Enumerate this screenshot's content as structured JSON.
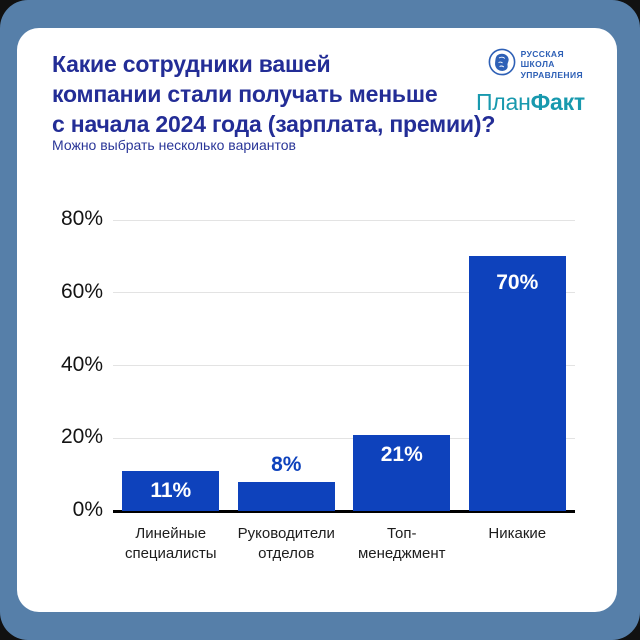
{
  "page": {
    "frame_color": "#567fa9",
    "card_background": "#ffffff"
  },
  "header": {
    "title_lines": [
      "Какие сотрудники вашей",
      "компании стали получать меньше",
      "с начала 2024 года (зарплата, премии)?"
    ],
    "title_color": "#232d96",
    "subtitle": "Можно выбрать несколько вариантов"
  },
  "logos": {
    "rsu": {
      "emblem": "portrait-in-circle-icon",
      "name_lines": [
        "РУССКАЯ",
        "ШКОЛА",
        "УПРАВЛЕНИЯ"
      ],
      "color": "#2e60b6"
    },
    "planfact": {
      "regular_part": "План",
      "bold_part": "Факт",
      "color": "#1899ae"
    }
  },
  "chart_data": {
    "type": "bar",
    "title": "Какие сотрудники вашей компании стали получать меньше с начала 2024 года (зарплата, премии)?",
    "subtitle": "Можно выбрать несколько вариантов",
    "categories": [
      "Линейные специалисты",
      "Руководители отделов",
      "Топ-менеджмент",
      "Никакие"
    ],
    "category_lines": [
      [
        "Линейные",
        "специалисты"
      ],
      [
        "Руководители",
        "отделов"
      ],
      [
        "Топ-",
        "менеджмент"
      ],
      [
        "Никакие"
      ]
    ],
    "values": [
      11,
      8,
      21,
      70
    ],
    "value_labels": [
      "11%",
      "8%",
      "21%",
      "70%"
    ],
    "value_label_placement": [
      "inside",
      "above",
      "inside",
      "inside"
    ],
    "ylim": [
      0,
      80
    ],
    "y_ticks": [
      80,
      60,
      40,
      20,
      0
    ],
    "y_tick_labels": [
      "80%",
      "60%",
      "40%",
      "20%",
      "0%"
    ],
    "xlabel": "",
    "ylabel": "",
    "grid": true,
    "gridline_color": "#e3e3e3",
    "axis_color": "#000000",
    "bar_color": "#0e42bc",
    "legend_position": "none"
  }
}
